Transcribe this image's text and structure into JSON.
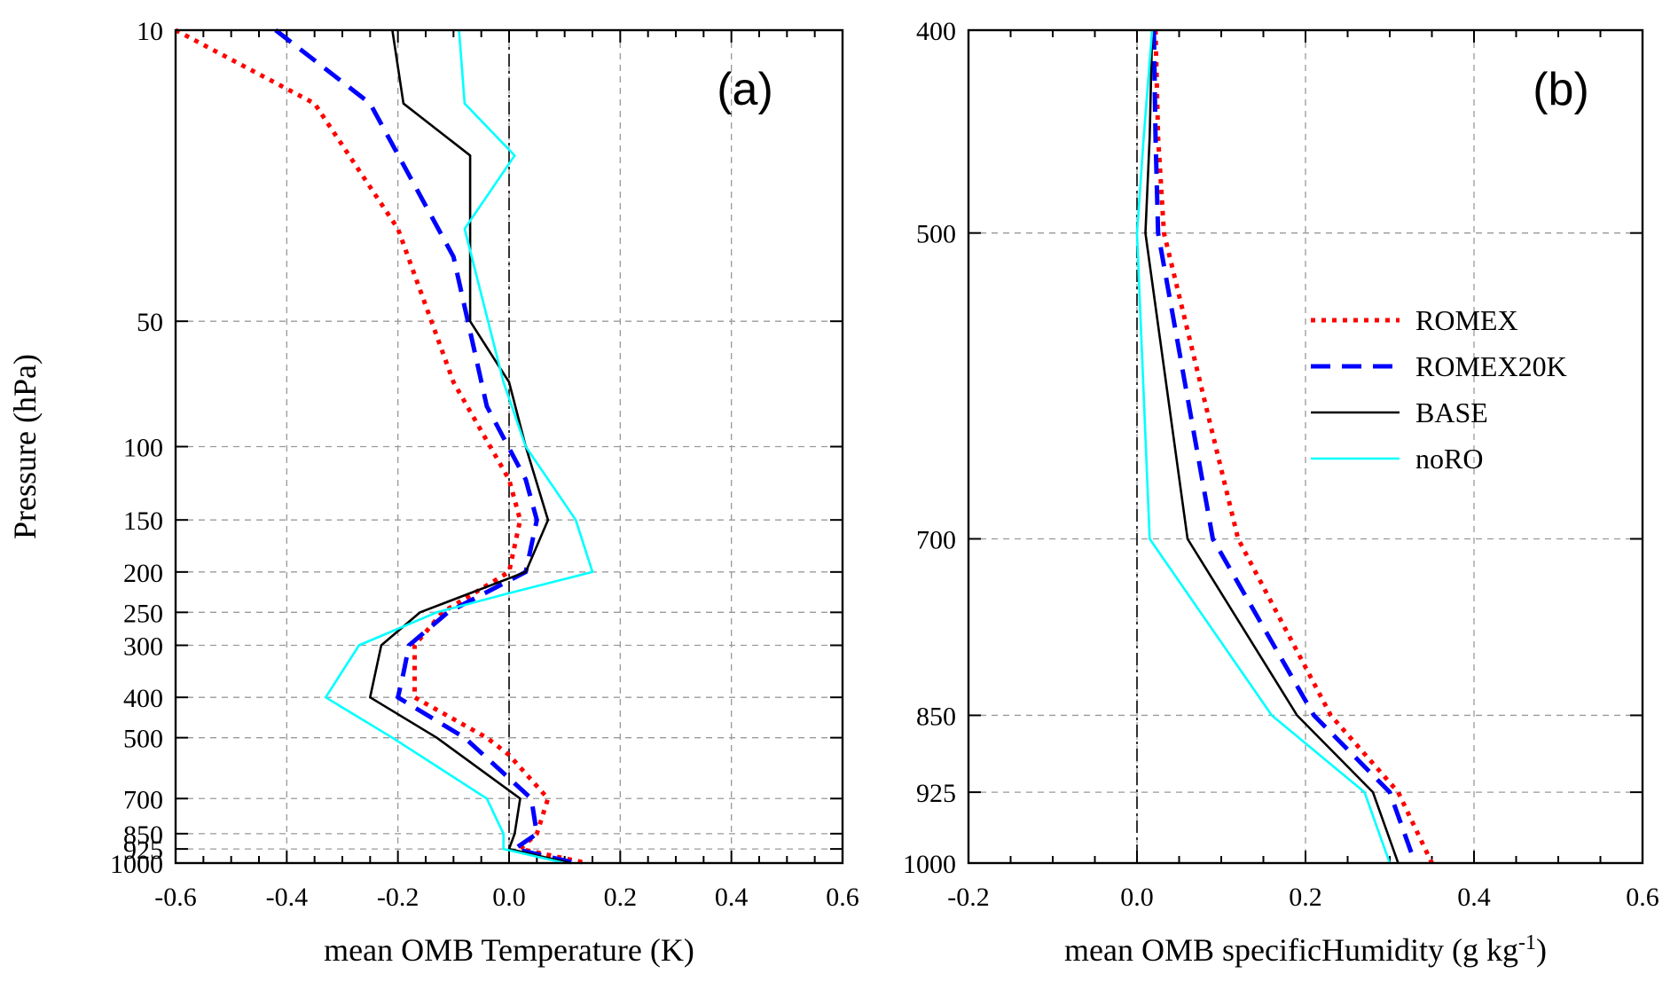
{
  "chart_data": [
    {
      "type": "line",
      "panel_label": "(a)",
      "xlabel": "mean OMB Temperature (K)",
      "ylabel": "Pressure (hPa)",
      "xlim": [
        -0.6,
        0.6
      ],
      "x_ticks": [
        -0.6,
        -0.4,
        -0.2,
        0.0,
        0.2,
        0.4,
        0.6
      ],
      "x_tick_labels": [
        "-0.6",
        "-0.4",
        "-0.2",
        "0.0",
        "0.2",
        "0.4",
        "0.6"
      ],
      "y_scale": "log",
      "ylim": [
        1000,
        10
      ],
      "y_ticks": [
        10,
        50,
        100,
        150,
        200,
        250,
        300,
        400,
        500,
        700,
        850,
        925,
        1000
      ],
      "y_tick_labels": [
        "10",
        "50",
        "100",
        "150",
        "200",
        "250",
        "300",
        "400",
        "500",
        "700",
        "850",
        "925",
        "1000"
      ],
      "grid": true,
      "series": [
        {
          "name": "ROMEX",
          "color": "#ff0000",
          "style": "dotted",
          "x": [
            -0.6,
            -0.35,
            -0.2,
            -0.1,
            0.0,
            0.02,
            0.0,
            -0.12,
            -0.17,
            -0.17,
            -0.17,
            -0.04,
            0.0,
            0.07,
            0.05,
            0.02,
            0.14
          ],
          "y": [
            10,
            15,
            30,
            70,
            120,
            150,
            200,
            250,
            300,
            350,
            400,
            500,
            550,
            700,
            850,
            925,
            1000
          ]
        },
        {
          "name": "ROMEX20K",
          "color": "#0000ff",
          "style": "dashed",
          "x": [
            -0.42,
            -0.25,
            -0.1,
            -0.04,
            0.03,
            0.05,
            0.03,
            -0.11,
            -0.18,
            -0.19,
            -0.2,
            -0.08,
            0.04,
            0.05,
            0.01,
            0.12
          ],
          "y": [
            10,
            15,
            35,
            80,
            120,
            150,
            200,
            250,
            300,
            350,
            400,
            500,
            700,
            850,
            925,
            1000
          ]
        },
        {
          "name": "BASE",
          "color": "#000000",
          "style": "solid",
          "x": [
            -0.21,
            -0.19,
            -0.07,
            -0.07,
            0.0,
            0.03,
            0.07,
            0.03,
            -0.16,
            -0.23,
            -0.25,
            -0.13,
            0.02,
            0.01,
            0.0,
            0.11
          ],
          "y": [
            10,
            15,
            20,
            50,
            70,
            100,
            150,
            200,
            250,
            300,
            400,
            500,
            700,
            850,
            925,
            1000
          ]
        },
        {
          "name": "noRO",
          "color": "#00ffff",
          "style": "solid",
          "x": [
            -0.09,
            -0.08,
            0.01,
            -0.08,
            -0.01,
            0.03,
            0.12,
            0.15,
            0.0,
            -0.13,
            -0.27,
            -0.33,
            -0.21,
            -0.04,
            -0.01,
            -0.01,
            0.1
          ],
          "y": [
            10,
            15,
            20,
            30,
            70,
            100,
            150,
            200,
            225,
            250,
            300,
            400,
            500,
            700,
            850,
            925,
            1000
          ]
        }
      ]
    },
    {
      "type": "line",
      "panel_label": "(b)",
      "xlabel": "mean OMB specificHumidity (g kg",
      "xlabel_superscript": "-1",
      "xlabel_suffix": ")",
      "ylabel": "",
      "xlim": [
        -0.2,
        0.6
      ],
      "x_ticks": [
        -0.2,
        0.0,
        0.2,
        0.4,
        0.6
      ],
      "x_tick_labels": [
        "-0.2",
        "0.0",
        "0.2",
        "0.4",
        "0.6"
      ],
      "y_scale": "log",
      "ylim": [
        1000,
        400
      ],
      "y_ticks": [
        400,
        500,
        700,
        850,
        925,
        1000
      ],
      "y_tick_labels": [
        "400",
        "500",
        "700",
        "850",
        "925",
        "1000"
      ],
      "grid": true,
      "legend": {
        "position": "right-middle",
        "entries": [
          "ROMEX",
          "ROMEX20K",
          "BASE",
          "noRO"
        ]
      },
      "series": [
        {
          "name": "ROMEX",
          "color": "#ff0000",
          "style": "dotted",
          "x": [
            0.022,
            0.025,
            0.032,
            0.12,
            0.23,
            0.31,
            0.35
          ],
          "y": [
            400,
            450,
            500,
            700,
            850,
            925,
            1000
          ]
        },
        {
          "name": "ROMEX20K",
          "color": "#0000ff",
          "style": "dashed",
          "x": [
            0.02,
            0.022,
            0.025,
            0.09,
            0.21,
            0.3,
            0.33
          ],
          "y": [
            400,
            450,
            500,
            700,
            850,
            925,
            1000
          ]
        },
        {
          "name": "BASE",
          "color": "#000000",
          "style": "solid",
          "x": [
            0.018,
            0.015,
            0.01,
            0.06,
            0.19,
            0.28,
            0.31
          ],
          "y": [
            400,
            450,
            500,
            700,
            850,
            925,
            1000
          ]
        },
        {
          "name": "noRO",
          "color": "#00ffff",
          "style": "solid",
          "x": [
            0.018,
            0.008,
            0.0,
            0.015,
            0.16,
            0.27,
            0.3
          ],
          "y": [
            400,
            450,
            500,
            700,
            850,
            925,
            1000
          ]
        }
      ]
    }
  ]
}
